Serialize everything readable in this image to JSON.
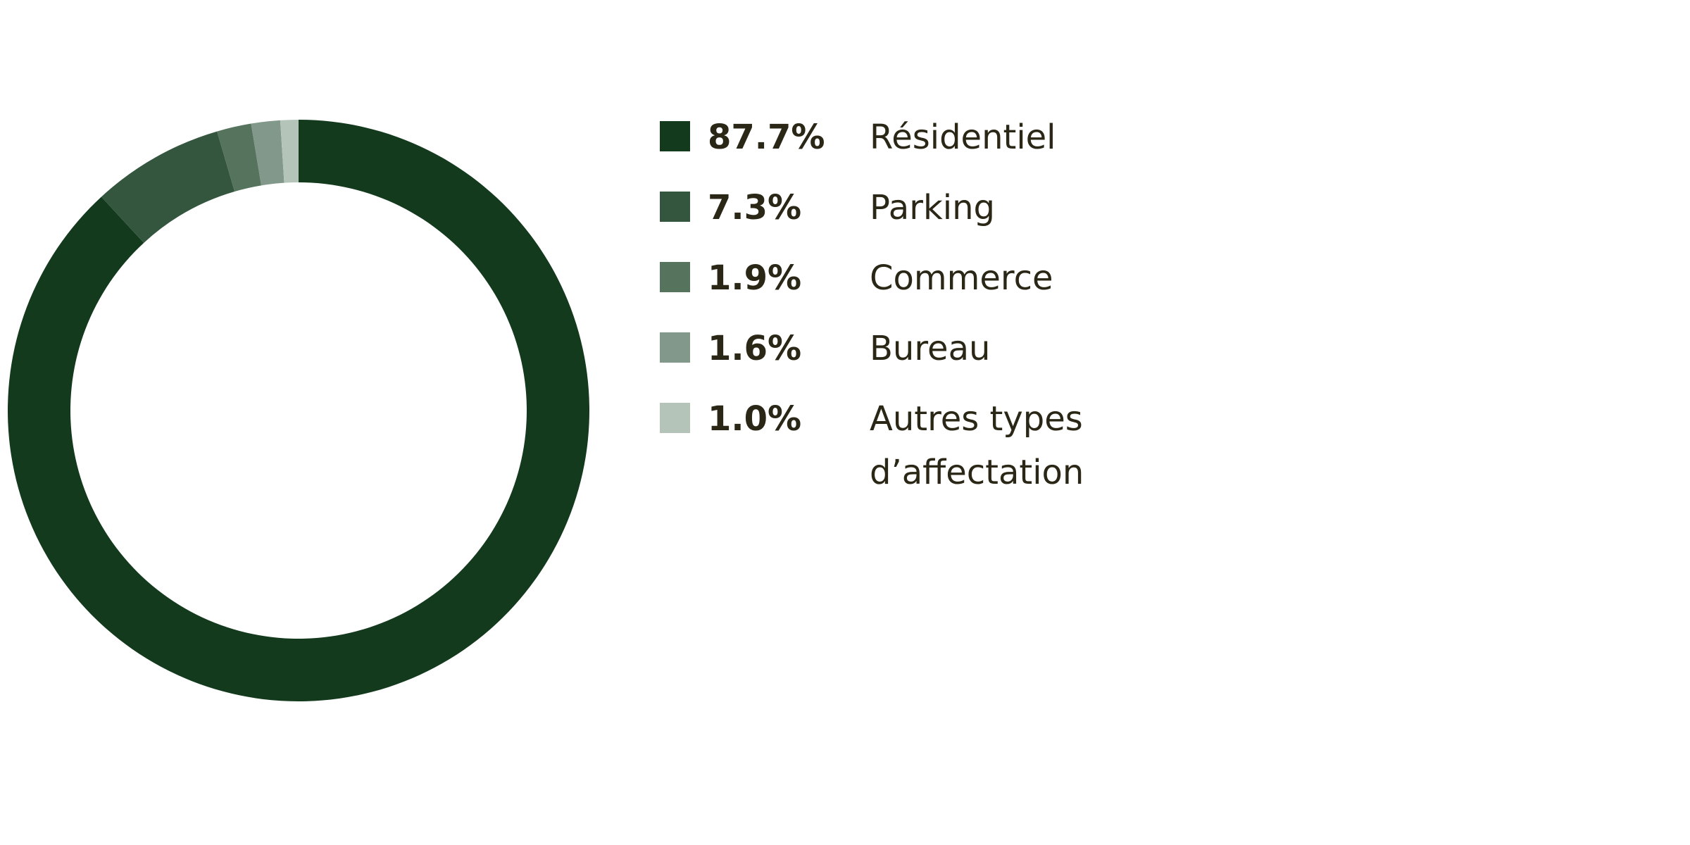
{
  "chart_data": {
    "type": "pie",
    "categories": [
      "Résidentiel",
      "Parking",
      "Commerce",
      "Bureau",
      "Autres types d’affectation"
    ],
    "values": [
      87.7,
      7.3,
      1.9,
      1.6,
      1.0
    ],
    "value_labels": [
      "87.7%",
      "7.3%",
      "1.9%",
      "1.6%",
      "1.0%"
    ],
    "colors": [
      "#133a1d",
      "#35563e",
      "#56735d",
      "#81988a",
      "#b5c4b9"
    ]
  }
}
